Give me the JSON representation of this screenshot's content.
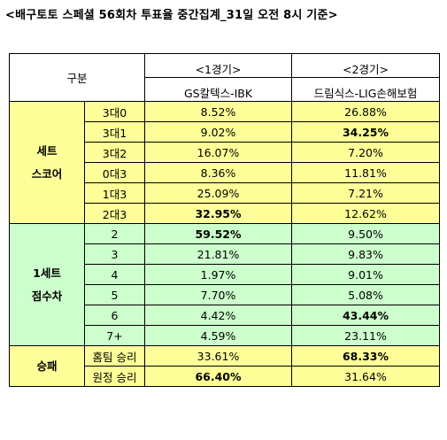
{
  "title": "<배구토토 스페셜 56회차 투표율 중간집계_31일 오전 8시 기준>",
  "header": {
    "category": "구분",
    "game1": "<1경기>",
    "game2": "<2경기>",
    "team1": "GS칼텍스-IBK",
    "team2": "드림식스-LIG손해보험"
  },
  "colors": {
    "yellow": "#ffff99",
    "green": "#ccffcc"
  },
  "sections": [
    {
      "line1": "세트",
      "line2": "스코어",
      "color": "yellow",
      "rows": [
        {
          "label": "3대0",
          "g1": "8.52%",
          "g2": "26.88%",
          "bold": ""
        },
        {
          "label": "3대1",
          "g1": "9.02%",
          "g2": "34.25%",
          "bold": "g2"
        },
        {
          "label": "3대2",
          "g1": "16.07%",
          "g2": "7.20%",
          "bold": ""
        },
        {
          "label": "0대3",
          "g1": "8.36%",
          "g2": "11.81%",
          "bold": ""
        },
        {
          "label": "1대3",
          "g1": "25.09%",
          "g2": "7.21%",
          "bold": ""
        },
        {
          "label": "2대3",
          "g1": "32.95%",
          "g2": "12.62%",
          "bold": "g1"
        }
      ]
    },
    {
      "line1": "1세트",
      "line2": "점수차",
      "color": "green",
      "rows": [
        {
          "label": "2",
          "g1": "59.52%",
          "g2": "9.50%",
          "bold": "g1"
        },
        {
          "label": "3",
          "g1": "21.81%",
          "g2": "9.83%",
          "bold": ""
        },
        {
          "label": "4",
          "g1": "1.97%",
          "g2": "9.01%",
          "bold": ""
        },
        {
          "label": "5",
          "g1": "7.70%",
          "g2": "5.08%",
          "bold": ""
        },
        {
          "label": "6",
          "g1": "4.42%",
          "g2": "43.44%",
          "bold": "g2"
        },
        {
          "label": "7+",
          "g1": "4.59%",
          "g2": "23.11%",
          "bold": ""
        }
      ]
    },
    {
      "line1": "승패",
      "line2": "",
      "color": "yellow",
      "rows": [
        {
          "label": "홈팀 승리",
          "g1": "33.61%",
          "g2": "68.33%",
          "bold": "g2"
        },
        {
          "label": "원정 승리",
          "g1": "66.40%",
          "g2": "31.64%",
          "bold": "g1"
        }
      ]
    }
  ]
}
